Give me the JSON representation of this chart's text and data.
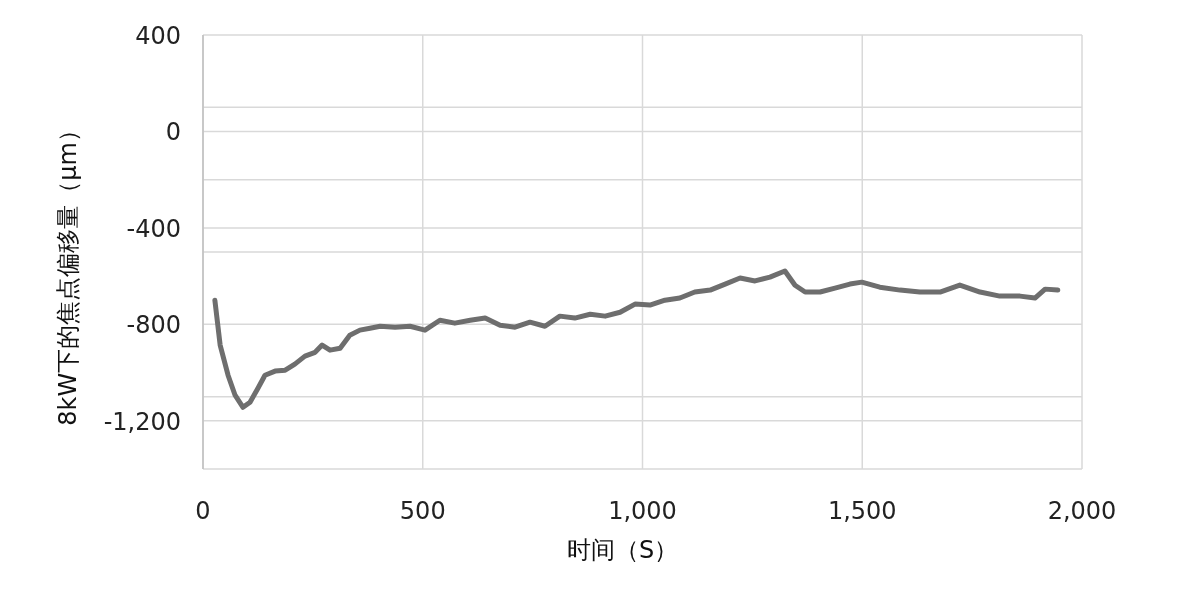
{
  "chart_data": {
    "type": "line",
    "xlabel": "时间（S）",
    "ylabel": "8kW下的焦点偏移量（μm）",
    "xlim": [
      0,
      2000
    ],
    "ylim": [
      -1400,
      400
    ],
    "xticks": [
      0,
      500,
      {
        "value": 1000,
        "label": "1,000"
      },
      {
        "value": 1500,
        "label": "1,500"
      },
      {
        "value": 2000,
        "label": "2,000"
      }
    ],
    "yticks": [
      400,
      {
        "value": 100,
        "label": null
      },
      0,
      {
        "value": -200,
        "label": null
      },
      -400,
      {
        "value": -500,
        "label": null
      },
      -800,
      {
        "value": -1100,
        "label": null
      },
      {
        "value": -1200,
        "label": "-1,200"
      },
      {
        "value": -1400,
        "label": null
      }
    ],
    "grid": true,
    "marker": "none",
    "line_style": "solid",
    "series": [
      {
        "color": "#6e6e6e",
        "x": [
          27,
          39,
          57,
          73,
          91,
          107,
          125,
          141,
          164,
          187,
          209,
          232,
          255,
          271,
          289,
          312,
          334,
          357,
          380,
          403,
          437,
          471,
          505,
          539,
          573,
          608,
          642,
          676,
          710,
          744,
          778,
          812,
          846,
          881,
          915,
          949,
          983,
          1017,
          1051,
          1085,
          1119,
          1154,
          1188,
          1222,
          1256,
          1290,
          1324,
          1347,
          1370,
          1404,
          1438,
          1472,
          1499,
          1540,
          1586,
          1631,
          1677,
          1722,
          1768,
          1813,
          1859,
          1893,
          1916,
          1945
        ],
        "values": [
          -700,
          -886,
          -1011,
          -1094,
          -1144,
          -1123,
          -1065,
          -1011,
          -994,
          -990,
          -965,
          -932,
          -916,
          -886,
          -907,
          -899,
          -845,
          -824,
          -816,
          -808,
          -812,
          -808,
          -824,
          -783,
          -795,
          -783,
          -774,
          -804,
          -812,
          -791,
          -808,
          -766,
          -774,
          -758,
          -766,
          -750,
          -716,
          -720,
          -700,
          -691,
          -666,
          -658,
          -633,
          -608,
          -620,
          -604,
          -579,
          -638,
          -666,
          -666,
          -650,
          -633,
          -625,
          -646,
          -658,
          -666,
          -666,
          -637,
          -666,
          -683,
          -683,
          -691,
          -654,
          -658
        ]
      }
    ]
  }
}
